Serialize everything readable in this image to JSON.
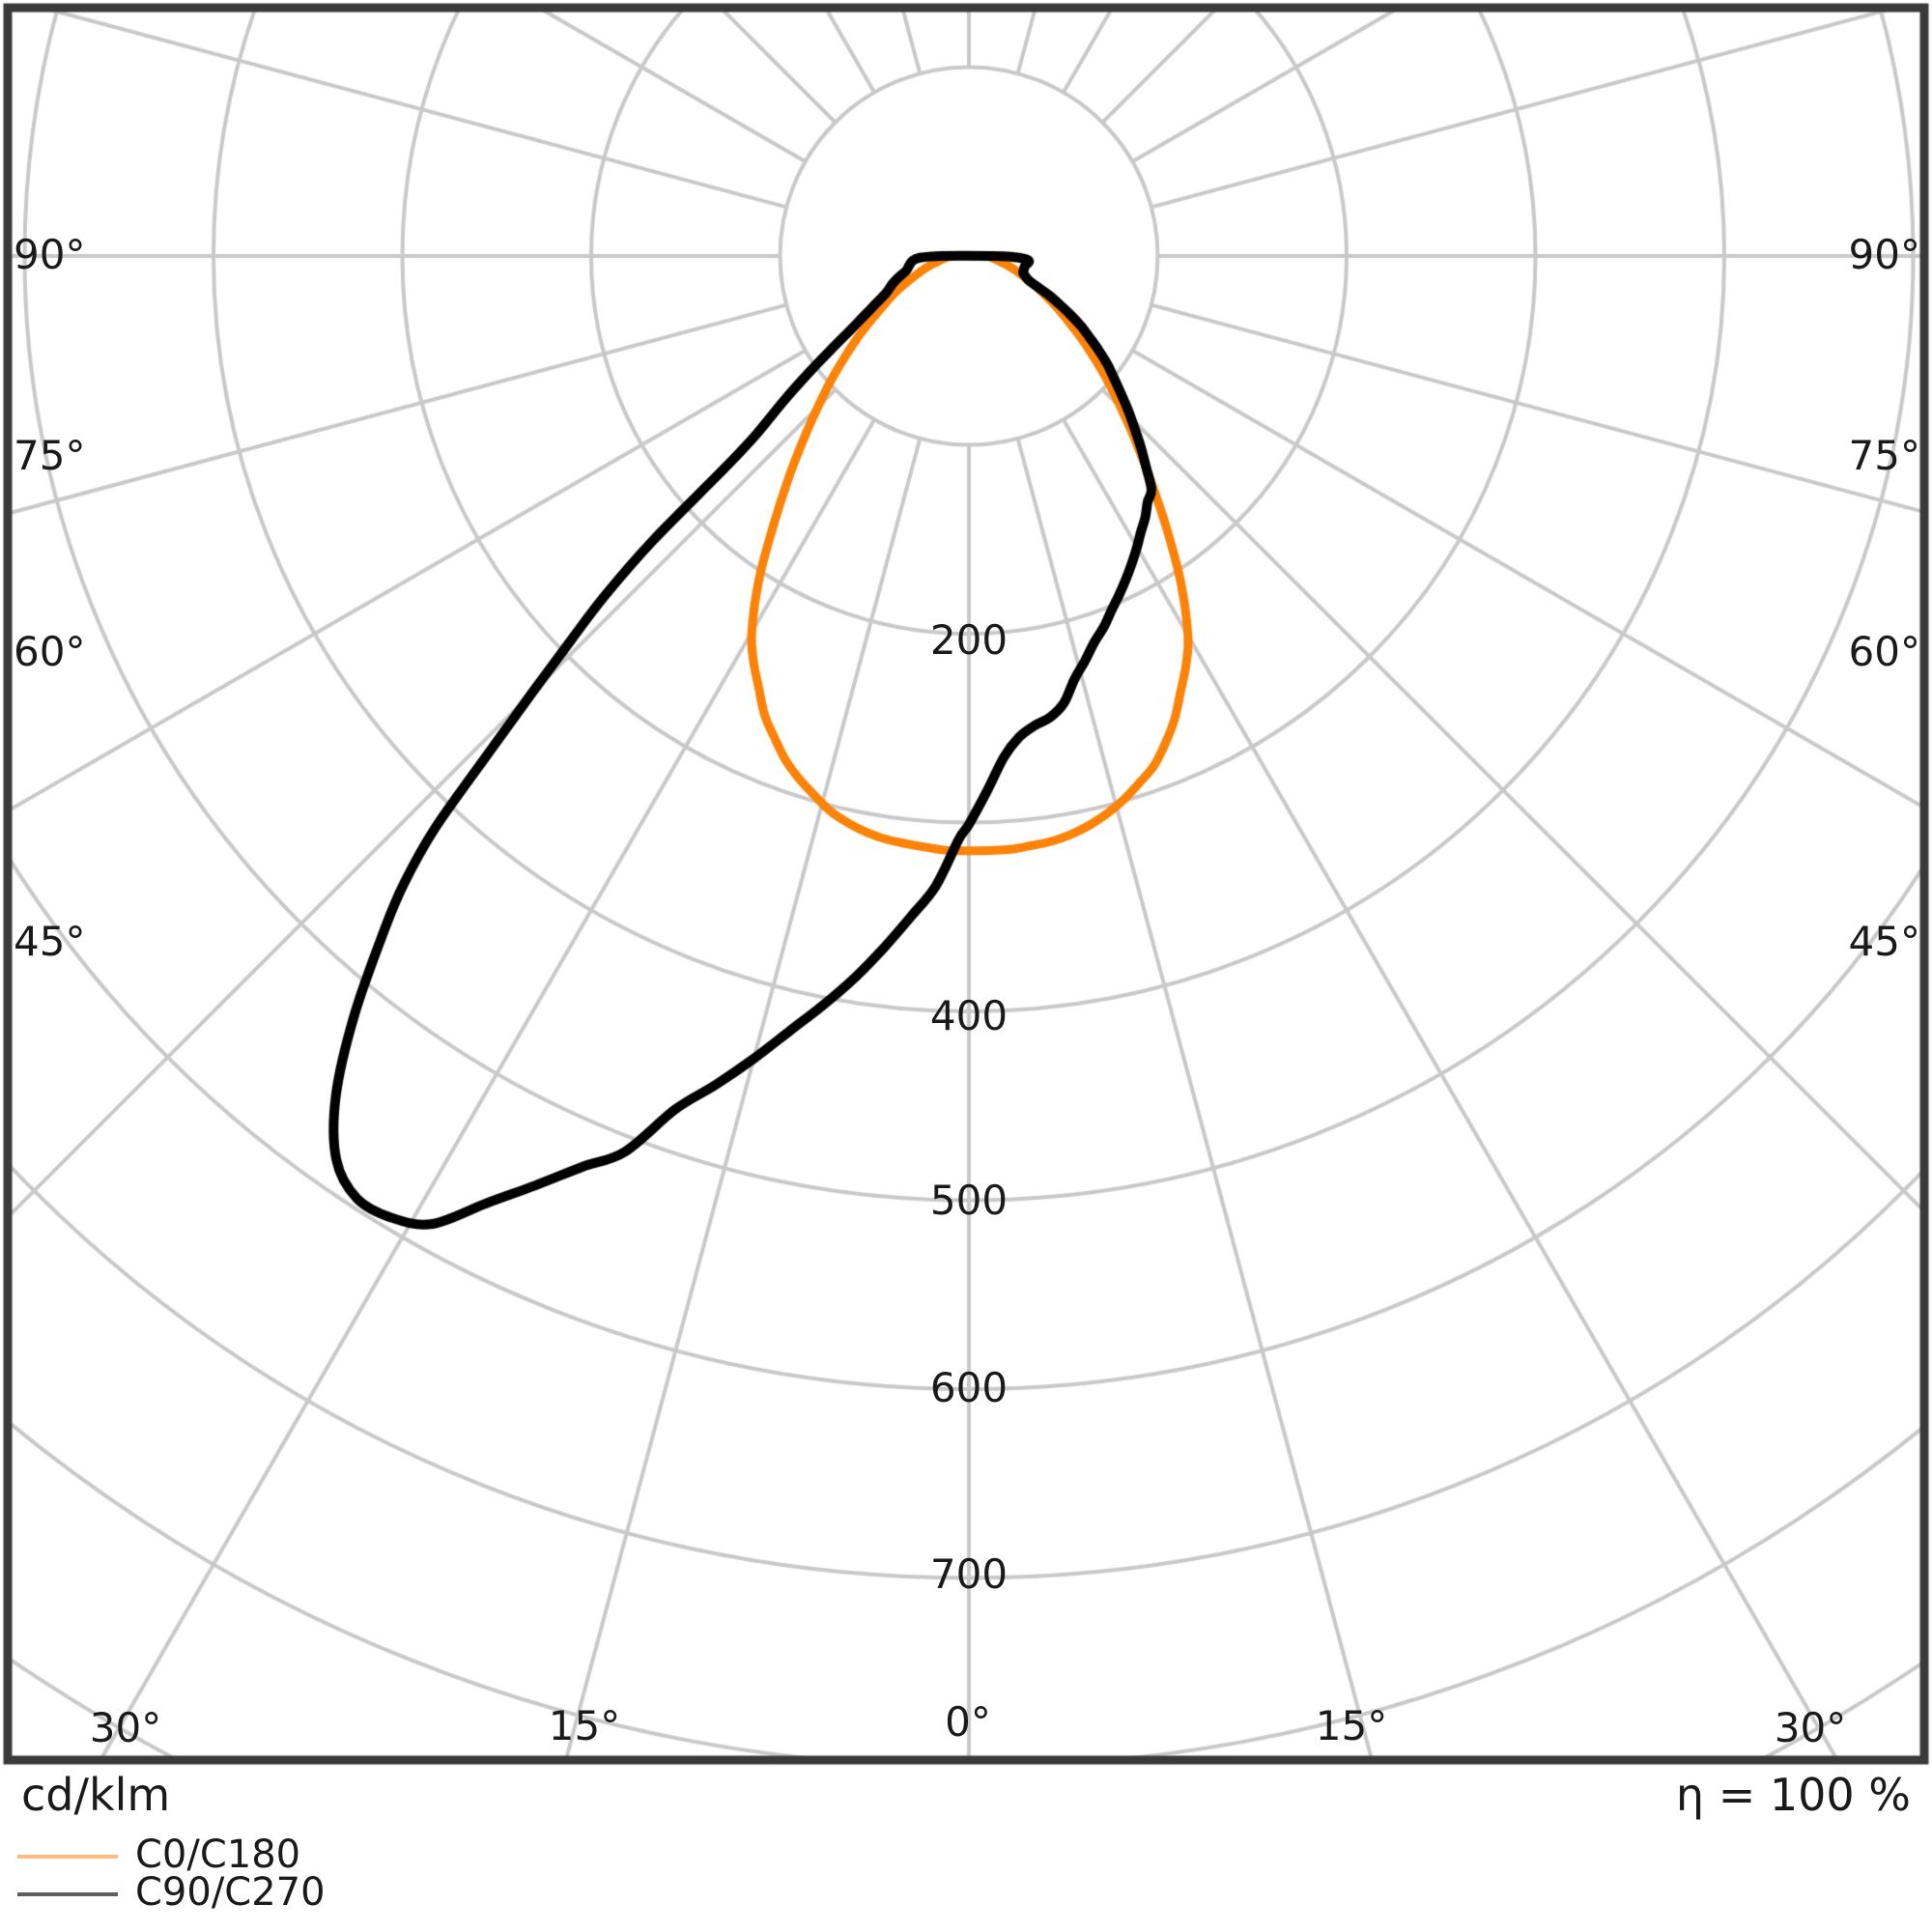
{
  "chart_data": {
    "type": "polar_photometric_intensity_diagram",
    "units_label": "cd/klm",
    "efficiency_label": "η = 100 %",
    "ring_labels": [
      "200",
      "400",
      "500",
      "600",
      "700"
    ],
    "angle_labels": {
      "left": [
        "90°",
        "75°",
        "60°",
        "45°"
      ],
      "right": [
        "90°",
        "75°",
        "60°",
        "45°"
      ],
      "bottom": [
        "30°",
        "15°",
        "0°",
        "15°",
        "30°"
      ]
    },
    "grid": {
      "color": "#c9c9c9",
      "border_color": "#3a3a3a",
      "ring_step": 100,
      "ring_max": 900,
      "ray_step_deg": 15,
      "ray_inner": 100,
      "radial_axis_range": [
        0,
        800
      ],
      "angle_zero": "nadir (straight down)",
      "legend_position": "bottom-left"
    },
    "legend": [
      {
        "label": "C0/C180",
        "color": "#ffbc80"
      },
      {
        "label": "C90/C270",
        "color": "#5e5e5e"
      }
    ],
    "series": [
      {
        "name": "C0/C180",
        "color": "#fd8208",
        "width": 9,
        "points_gamma_cdklm": [
          [
            -90,
            9
          ],
          [
            -86,
            12
          ],
          [
            -82,
            15
          ],
          [
            -78,
            19
          ],
          [
            -75,
            23
          ],
          [
            -72,
            27
          ],
          [
            -69,
            32
          ],
          [
            -66,
            38
          ],
          [
            -63,
            45
          ],
          [
            -60,
            52
          ],
          [
            -57,
            61
          ],
          [
            -54,
            72
          ],
          [
            -51,
            84
          ],
          [
            -48,
            98
          ],
          [
            -45,
            113
          ],
          [
            -42,
            131
          ],
          [
            -39,
            152
          ],
          [
            -36,
            176
          ],
          [
            -33,
            204
          ],
          [
            -30,
            230
          ],
          [
            -28,
            243
          ],
          [
            -26,
            254
          ],
          [
            -24,
            266
          ],
          [
            -22,
            275
          ],
          [
            -20,
            284
          ],
          [
            -18,
            291
          ],
          [
            -16,
            297
          ],
          [
            -14,
            303
          ],
          [
            -12,
            307
          ],
          [
            -10,
            310
          ],
          [
            -8,
            312
          ],
          [
            -6,
            313
          ],
          [
            -4,
            314
          ],
          [
            -2,
            315
          ],
          [
            0,
            315
          ],
          [
            2,
            315
          ],
          [
            4,
            315
          ],
          [
            6,
            314
          ],
          [
            8,
            313
          ],
          [
            10,
            311
          ],
          [
            12,
            308
          ],
          [
            14,
            304
          ],
          [
            16,
            299
          ],
          [
            18,
            293
          ],
          [
            20,
            287
          ],
          [
            22,
            278
          ],
          [
            24,
            268
          ],
          [
            26,
            256
          ],
          [
            28,
            245
          ],
          [
            30,
            232
          ],
          [
            33,
            206
          ],
          [
            36,
            178
          ],
          [
            39,
            153
          ],
          [
            42,
            132
          ],
          [
            45,
            114
          ],
          [
            48,
            99
          ],
          [
            51,
            85
          ],
          [
            54,
            73
          ],
          [
            57,
            62
          ],
          [
            60,
            53
          ],
          [
            63,
            45
          ],
          [
            66,
            38
          ],
          [
            69,
            32
          ],
          [
            72,
            27
          ],
          [
            75,
            23
          ],
          [
            78,
            19
          ],
          [
            82,
            15
          ],
          [
            86,
            12
          ],
          [
            90,
            9
          ]
        ]
      },
      {
        "name": "C90/C270",
        "color": "#000000",
        "width": 10,
        "points_gamma_cdklm": [
          [
            -90,
            14
          ],
          [
            -88,
            26
          ],
          [
            -85,
            30
          ],
          [
            -81,
            32
          ],
          [
            -77,
            34
          ],
          [
            -73,
            39
          ],
          [
            -70,
            43
          ],
          [
            -66,
            48
          ],
          [
            -63,
            55
          ],
          [
            -60,
            65
          ],
          [
            -58,
            74
          ],
          [
            -56,
            87
          ],
          [
            -54,
            104
          ],
          [
            -52,
            124
          ],
          [
            -50,
            147
          ],
          [
            -49,
            172
          ],
          [
            -48,
            225
          ],
          [
            -47,
            263
          ],
          [
            -46,
            293
          ],
          [
            -45,
            327
          ],
          [
            -44,
            367
          ],
          [
            -43,
            415
          ],
          [
            -42,
            447
          ],
          [
            -41,
            471
          ],
          [
            -39,
            517
          ],
          [
            -37,
            557
          ],
          [
            -35,
            584
          ],
          [
            -33,
            595
          ],
          [
            -31,
            594
          ],
          [
            -29,
            586
          ],
          [
            -27,
            563
          ],
          [
            -25,
            543
          ],
          [
            -23,
            524
          ],
          [
            -21,
            508
          ],
          [
            -19,
            478
          ],
          [
            -17,
            459
          ],
          [
            -15,
            440
          ],
          [
            -13,
            421
          ],
          [
            -11,
            404
          ],
          [
            -9,
            387
          ],
          [
            -7,
            369
          ],
          [
            -5,
            351
          ],
          [
            -3,
            334
          ],
          [
            -1,
            309
          ],
          [
            0,
            301
          ],
          [
            2,
            283
          ],
          [
            4,
            266
          ],
          [
            6,
            256
          ],
          [
            8,
            251
          ],
          [
            10,
            248
          ],
          [
            12,
            242
          ],
          [
            14,
            231
          ],
          [
            16,
            223
          ],
          [
            18,
            215
          ],
          [
            20,
            209
          ],
          [
            22,
            202
          ],
          [
            24,
            196
          ],
          [
            26,
            190
          ],
          [
            28,
            184
          ],
          [
            30,
            178
          ],
          [
            32,
            172
          ],
          [
            34,
            167
          ],
          [
            36,
            161
          ],
          [
            38,
            157
          ],
          [
            40,
            146
          ],
          [
            42,
            136
          ],
          [
            44,
            126
          ],
          [
            46,
            117
          ],
          [
            48,
            108
          ],
          [
            50,
            100
          ],
          [
            52,
            93
          ],
          [
            54,
            85
          ],
          [
            56,
            77
          ],
          [
            58,
            70
          ],
          [
            60,
            62
          ],
          [
            62,
            54
          ],
          [
            64,
            47
          ],
          [
            66,
            39
          ],
          [
            68,
            34
          ],
          [
            70,
            32
          ],
          [
            73,
            30
          ],
          [
            76,
            30
          ],
          [
            79,
            30
          ],
          [
            82,
            31
          ],
          [
            85,
            32
          ],
          [
            87,
            30
          ],
          [
            89,
            22
          ],
          [
            90,
            12
          ]
        ]
      }
    ]
  }
}
